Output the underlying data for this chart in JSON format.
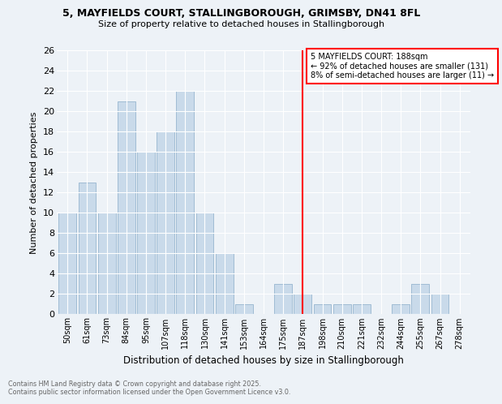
{
  "title_line1": "5, MAYFIELDS COURT, STALLINGBOROUGH, GRIMSBY, DN41 8FL",
  "title_line2": "Size of property relative to detached houses in Stallingborough",
  "xlabel": "Distribution of detached houses by size in Stallingborough",
  "ylabel": "Number of detached properties",
  "bar_labels": [
    "50sqm",
    "61sqm",
    "73sqm",
    "84sqm",
    "95sqm",
    "107sqm",
    "118sqm",
    "130sqm",
    "141sqm",
    "153sqm",
    "164sqm",
    "175sqm",
    "187sqm",
    "198sqm",
    "210sqm",
    "221sqm",
    "232sqm",
    "244sqm",
    "255sqm",
    "267sqm",
    "278sqm"
  ],
  "bar_values": [
    10,
    13,
    10,
    21,
    16,
    18,
    22,
    10,
    6,
    1,
    0,
    3,
    2,
    1,
    1,
    1,
    0,
    1,
    3,
    2,
    0
  ],
  "bar_color": "#c9daea",
  "bar_edgecolor": "#a0bcd4",
  "bg_color": "#edf2f7",
  "grid_color": "#ffffff",
  "vline_x": 12,
  "vline_color": "red",
  "annotation_title": "5 MAYFIELDS COURT: 188sqm",
  "annotation_line2": "← 92% of detached houses are smaller (131)",
  "annotation_line3": "8% of semi-detached houses are larger (11) →",
  "footnote_line1": "Contains HM Land Registry data © Crown copyright and database right 2025.",
  "footnote_line2": "Contains public sector information licensed under the Open Government Licence v3.0.",
  "ylim": [
    0,
    26
  ],
  "yticks": [
    0,
    2,
    4,
    6,
    8,
    10,
    12,
    14,
    16,
    18,
    20,
    22,
    24,
    26
  ]
}
